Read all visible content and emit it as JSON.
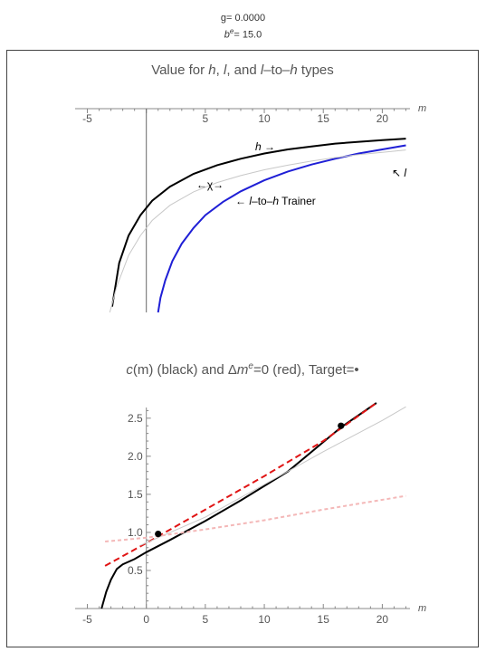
{
  "params": {
    "g_label": "g= 0.0000",
    "be_label": "be= 15.0"
  },
  "chart_data": [
    {
      "type": "line",
      "title": "Value for h, l, and l–to–h types",
      "xlabel": "m",
      "ylabel": "",
      "xlim": [
        -5.5,
        22.5
      ],
      "ylim": [
        -3.0,
        0.5
      ],
      "x_ticks": [
        -5,
        5,
        10,
        15,
        20
      ],
      "x_axis_position": "top",
      "y_axis_at_x": 0,
      "grid": false,
      "series": [
        {
          "color": "#000000",
          "points": [
            [
              -2.9,
              -2.9
            ],
            [
              -2.3,
              -2.15
            ],
            [
              -1.5,
              -1.68
            ],
            [
              -0.5,
              -1.33
            ],
            [
              0.5,
              -1.08
            ],
            [
              2,
              -0.84
            ],
            [
              4,
              -0.62
            ],
            [
              6,
              -0.47
            ],
            [
              8,
              -0.36
            ],
            [
              10,
              -0.27
            ],
            [
              12,
              -0.2
            ],
            [
              14,
              -0.15
            ],
            [
              16,
              -0.1
            ],
            [
              18,
              -0.07
            ],
            [
              20,
              -0.04
            ],
            [
              22,
              -0.015
            ]
          ]
        },
        {
          "color": "#1f1fd6",
          "points": [
            [
              1,
              -3.0
            ],
            [
              1.2,
              -2.75
            ],
            [
              1.6,
              -2.45
            ],
            [
              2.2,
              -2.12
            ],
            [
              3,
              -1.82
            ],
            [
              4,
              -1.55
            ],
            [
              5,
              -1.33
            ],
            [
              6.5,
              -1.1
            ],
            [
              8,
              -0.92
            ],
            [
              10,
              -0.73
            ],
            [
              12,
              -0.58
            ],
            [
              14,
              -0.46
            ],
            [
              16,
              -0.36
            ],
            [
              18,
              -0.27
            ],
            [
              20,
              -0.2
            ],
            [
              22,
              -0.13
            ]
          ]
        },
        {
          "color": "#c8c8c8",
          "points": [
            [
              -3.1,
              -3.0
            ],
            [
              -2.5,
              -2.55
            ],
            [
              -1.5,
              -2.02
            ],
            [
              -0.5,
              -1.68
            ],
            [
              0.5,
              -1.42
            ],
            [
              2,
              -1.16
            ],
            [
              4,
              -0.93
            ],
            [
              6,
              -0.77
            ],
            [
              8,
              -0.65
            ],
            [
              10,
              -0.55
            ],
            [
              12,
              -0.47
            ],
            [
              14,
              -0.4
            ],
            [
              16,
              -0.34
            ],
            [
              18,
              -0.29
            ],
            [
              20,
              -0.25
            ],
            [
              22,
              -0.21
            ]
          ]
        }
      ],
      "annotations": [
        "h →",
        "←χ→",
        "← l–to–h Trainer",
        "↖ l"
      ]
    },
    {
      "type": "line",
      "title": "c(m) (black) and Δme=0 (red), Target=•",
      "xlabel": "m",
      "ylabel": "",
      "xlim": [
        -5.5,
        22.5
      ],
      "ylim": [
        0,
        2.7
      ],
      "x_ticks": [
        -5,
        0,
        5,
        10,
        15,
        20
      ],
      "y_ticks": [
        0.5,
        1.0,
        1.5,
        2.0,
        2.5
      ],
      "grid": false,
      "series": [
        {
          "color": "#000000",
          "points": [
            [
              -3.8,
              0.0
            ],
            [
              -3.4,
              0.22
            ],
            [
              -3,
              0.38
            ],
            [
              -2.5,
              0.52
            ],
            [
              -2,
              0.58
            ],
            [
              -1,
              0.65
            ],
            [
              0,
              0.74
            ],
            [
              2,
              0.9
            ],
            [
              5,
              1.15
            ],
            [
              8,
              1.42
            ],
            [
              12,
              1.8
            ],
            [
              16.5,
              2.38
            ],
            [
              19.5,
              2.7
            ]
          ]
        },
        {
          "color": "#e01414",
          "dashed": true,
          "points": [
            [
              -3.5,
              0.56
            ],
            [
              0,
              0.86
            ],
            [
              5,
              1.3
            ],
            [
              10,
              1.74
            ],
            [
              15,
              2.2
            ],
            [
              19.5,
              2.7
            ]
          ]
        },
        {
          "color": "#c8c8c8",
          "points": [
            [
              -0.5,
              0.83
            ],
            [
              5,
              1.2
            ],
            [
              10,
              1.63
            ],
            [
              15,
              2.06
            ],
            [
              20,
              2.47
            ],
            [
              22,
              2.65
            ]
          ]
        },
        {
          "color": "#f4b8b8",
          "dashed": true,
          "points": [
            [
              -3.5,
              0.88
            ],
            [
              0,
              0.93
            ],
            [
              5,
              1.04
            ],
            [
              10,
              1.16
            ],
            [
              15,
              1.3
            ],
            [
              22,
              1.48
            ]
          ]
        }
      ],
      "targets": [
        [
          1,
          0.98
        ],
        [
          16.5,
          2.4
        ]
      ],
      "target_color": "#000000"
    }
  ]
}
